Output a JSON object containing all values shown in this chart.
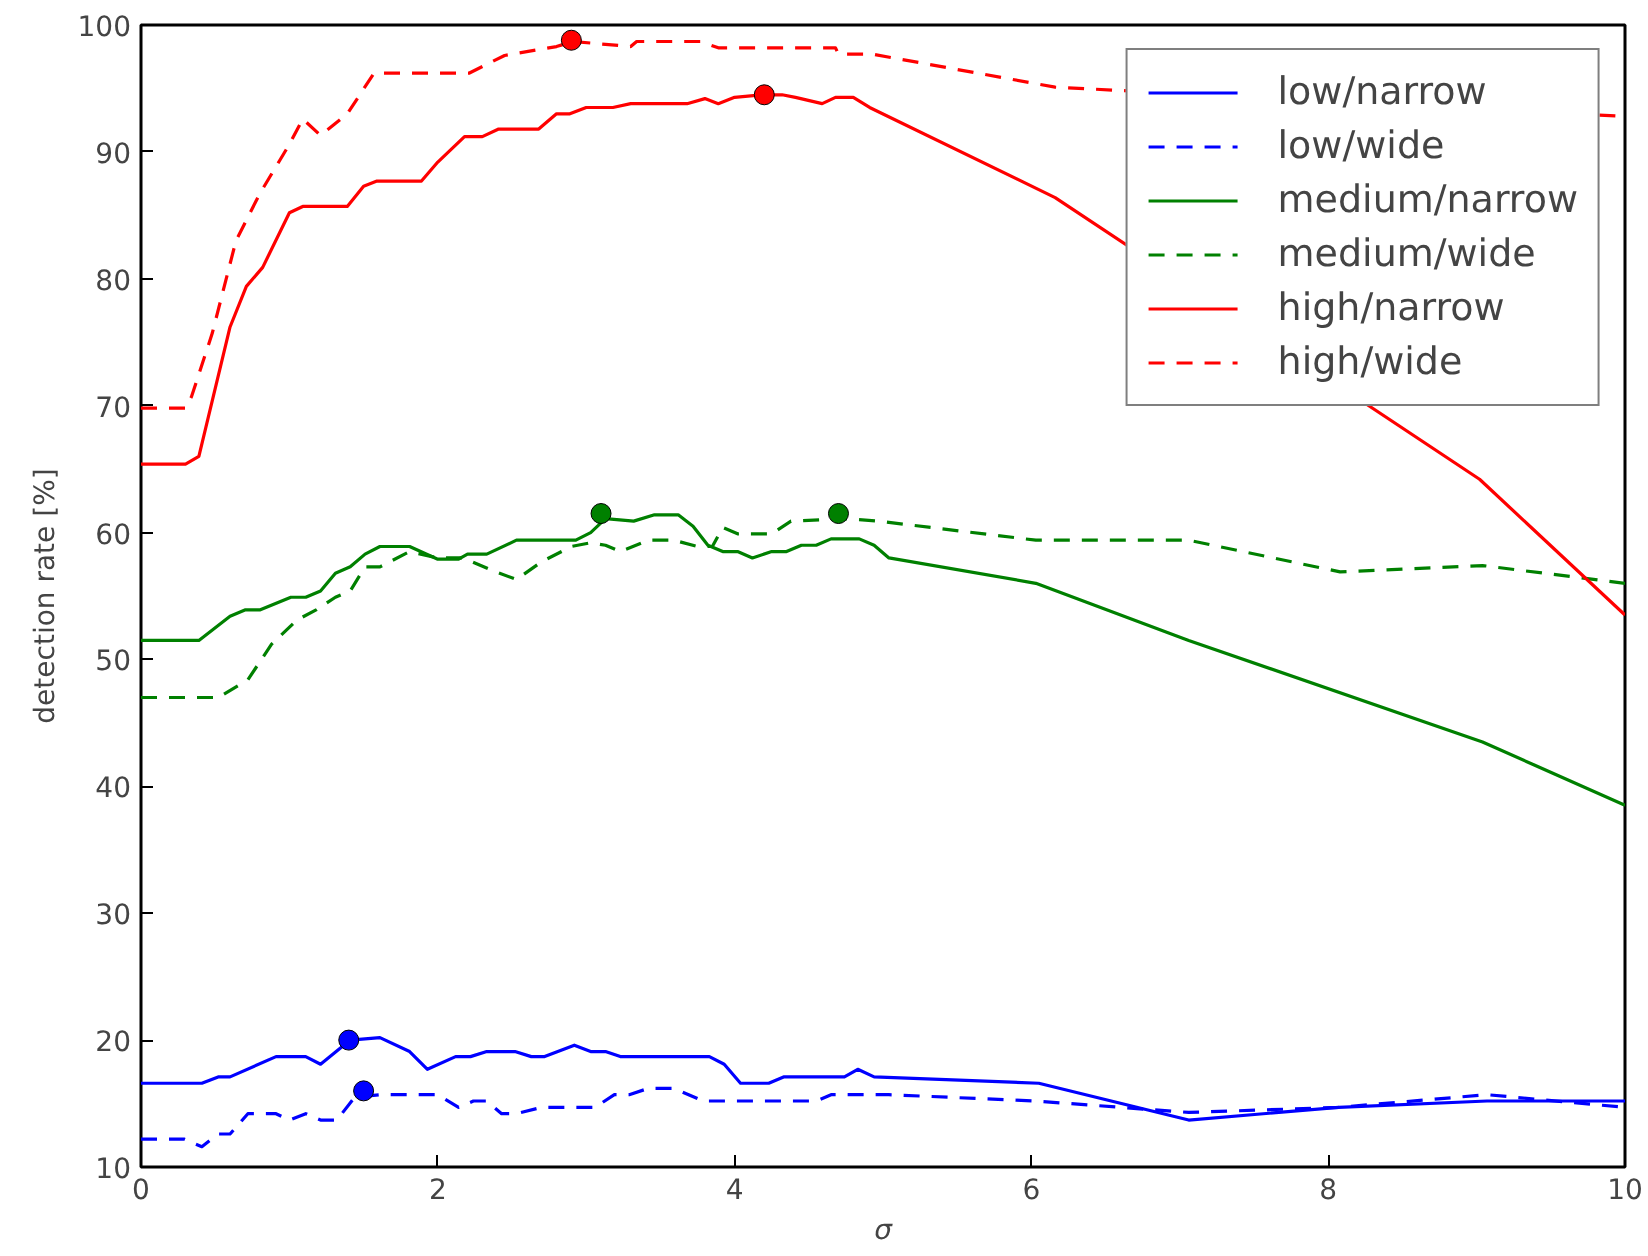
{
  "chart_data": {
    "type": "line",
    "xlabel": "σ",
    "ylabel": "detection rate [%]",
    "xlim": [
      0,
      10
    ],
    "ylim": [
      10,
      100
    ],
    "xticks": [
      0,
      2,
      4,
      6,
      8,
      10
    ],
    "yticks": [
      10,
      20,
      30,
      40,
      50,
      60,
      70,
      80,
      90,
      100
    ],
    "grid": false,
    "legend": "top right",
    "marker": "none",
    "series": [
      {
        "name": "low/narrow",
        "color": "#0000ff",
        "line_style": "solid",
        "x": [
          0,
          0.41,
          0.52,
          0.6,
          0.91,
          1.11,
          1.21,
          1.41,
          1.61,
          1.81,
          1.93,
          2.12,
          2.22,
          2.33,
          2.52,
          2.63,
          2.72,
          2.92,
          3.03,
          3.13,
          3.23,
          3.83,
          3.93,
          4.04,
          4.23,
          4.33,
          4.74,
          4.83,
          4.94,
          6.05,
          7.06,
          8.07,
          9.07,
          10
        ],
        "values": [
          16.6,
          16.6,
          17.1,
          17.1,
          18.7,
          18.7,
          18.1,
          20,
          20.2,
          19.1,
          17.7,
          18.7,
          18.7,
          19.1,
          19.1,
          18.7,
          18.7,
          19.6,
          19.1,
          19.1,
          18.7,
          18.7,
          18.1,
          16.6,
          16.6,
          17.1,
          17.1,
          17.7,
          17.1,
          16.6,
          13.7,
          14.7,
          15.2,
          15.2
        ]
      },
      {
        "name": "low/wide",
        "color": "#0000ff",
        "line_style": "dashed",
        "x": [
          0,
          0.29,
          0.41,
          0.52,
          0.6,
          0.72,
          0.91,
          1.0,
          1.11,
          1.21,
          1.32,
          1.44,
          1.61,
          1.71,
          2.0,
          2.14,
          2.24,
          2.33,
          2.43,
          2.53,
          2.7,
          2.96,
          3.06,
          3.19,
          3.29,
          3.42,
          3.59,
          3.79,
          3.95,
          4.55,
          4.65,
          5.04,
          6.03,
          7.06,
          8.07,
          9.07,
          10
        ],
        "values": [
          12.2,
          12.2,
          11.6,
          12.6,
          12.6,
          14.2,
          14.2,
          13.7,
          14.2,
          13.7,
          13.7,
          15.5,
          15.7,
          15.7,
          15.7,
          14.7,
          15.2,
          15.2,
          14.2,
          14.2,
          14.7,
          14.7,
          14.7,
          15.7,
          15.7,
          16.2,
          16.2,
          15.2,
          15.2,
          15.2,
          15.7,
          15.7,
          15.2,
          14.3,
          14.7,
          15.7,
          14.7
        ]
      },
      {
        "name": "medium/narrow",
        "color": "#008000",
        "line_style": "solid",
        "x": [
          0,
          0.39,
          0.6,
          0.7,
          0.8,
          1.01,
          1.11,
          1.21,
          1.31,
          1.41,
          1.51,
          1.61,
          1.81,
          2.0,
          2.14,
          2.2,
          2.33,
          2.53,
          2.93,
          3.03,
          3.13,
          3.32,
          3.46,
          3.62,
          3.72,
          3.82,
          3.92,
          4.02,
          4.12,
          4.25,
          4.35,
          4.45,
          4.55,
          4.65,
          4.84,
          4.94,
          5.04,
          6.03,
          7.06,
          9.04,
          10
        ],
        "values": [
          51.5,
          51.5,
          53.4,
          53.9,
          53.9,
          54.9,
          54.9,
          55.4,
          56.8,
          57.3,
          58.3,
          58.9,
          58.9,
          57.9,
          57.9,
          58.3,
          58.3,
          59.4,
          59.4,
          60,
          61.1,
          60.9,
          61.4,
          61.4,
          60.5,
          59,
          58.5,
          58.5,
          58,
          58.5,
          58.5,
          59,
          59,
          59.5,
          59.5,
          59,
          58,
          56,
          51.5,
          43.5,
          38.5
        ]
      },
      {
        "name": "medium/wide",
        "color": "#008000",
        "line_style": "dashed",
        "x": [
          0,
          0.52,
          0.72,
          0.88,
          1.05,
          1.18,
          1.31,
          1.41,
          1.51,
          1.61,
          1.81,
          2.0,
          2.17,
          2.37,
          2.53,
          2.7,
          2.9,
          3.03,
          3.13,
          3.23,
          3.42,
          3.59,
          3.75,
          3.85,
          3.92,
          4.02,
          4.25,
          4.38,
          4.74,
          4.97,
          6.03,
          7.06,
          8.08,
          9.04,
          10
        ],
        "values": [
          47,
          47,
          48.4,
          51.2,
          53.1,
          53.9,
          54.9,
          55.4,
          57.3,
          57.3,
          58.5,
          58,
          58,
          57,
          56.3,
          57.7,
          58.9,
          59.2,
          59,
          58.5,
          59.4,
          59.4,
          58.9,
          58.9,
          60.4,
          59.9,
          59.9,
          60.9,
          61.1,
          60.9,
          59.4,
          59.4,
          56.9,
          57.4,
          56
        ]
      },
      {
        "name": "high/narrow",
        "color": "#ff0000",
        "line_style": "solid",
        "x": [
          0,
          0.3,
          0.39,
          0.6,
          0.71,
          0.82,
          1.0,
          1.09,
          1.39,
          1.5,
          1.59,
          1.89,
          2.0,
          2.18,
          2.3,
          2.41,
          2.68,
          2.8,
          2.89,
          3.0,
          3.18,
          3.3,
          3.68,
          3.8,
          3.89,
          4.0,
          4.18,
          4.32,
          4.41,
          4.59,
          4.68,
          4.8,
          4.91,
          6.16,
          9.02,
          10
        ],
        "values": [
          65.4,
          65.4,
          66,
          76.2,
          79.4,
          80.9,
          85.2,
          85.7,
          85.7,
          87.3,
          87.7,
          87.7,
          89.2,
          91.2,
          91.2,
          91.8,
          91.8,
          93,
          93,
          93.5,
          93.5,
          93.8,
          93.8,
          94.2,
          93.8,
          94.3,
          94.5,
          94.5,
          94.3,
          93.8,
          94.3,
          94.3,
          93.5,
          86.4,
          64.2,
          53.5
        ]
      },
      {
        "name": "high/wide",
        "color": "#ff0000",
        "line_style": "dashed",
        "x": [
          0,
          0.3,
          0.34,
          0.48,
          0.64,
          0.8,
          1.0,
          1.09,
          1.21,
          1.39,
          1.57,
          2.21,
          2.45,
          2.8,
          2.91,
          3.3,
          3.34,
          3.77,
          3.89,
          4.68,
          4.7,
          4.93,
          6.16,
          10
        ],
        "values": [
          69.8,
          69.8,
          70.7,
          75.7,
          83,
          86.7,
          90.6,
          92.6,
          91.3,
          93,
          96.2,
          96.2,
          97.6,
          98.3,
          98.7,
          98.3,
          98.7,
          98.7,
          98.2,
          98.2,
          97.7,
          97.7,
          95.1,
          92.8
        ]
      },
      {
        "type": "scatter",
        "marker": "circle",
        "color": "#0000ff",
        "x": [
          1.4,
          1.5
        ],
        "values": [
          20,
          16
        ]
      },
      {
        "type": "scatter",
        "marker": "circle",
        "color": "#008000",
        "x": [
          3.1,
          4.7
        ],
        "values": [
          61.5,
          61.5
        ]
      },
      {
        "type": "scatter",
        "marker": "circle",
        "color": "#ff0000",
        "x": [
          2.9,
          4.2
        ],
        "values": [
          98.8,
          94.5
        ]
      }
    ]
  }
}
